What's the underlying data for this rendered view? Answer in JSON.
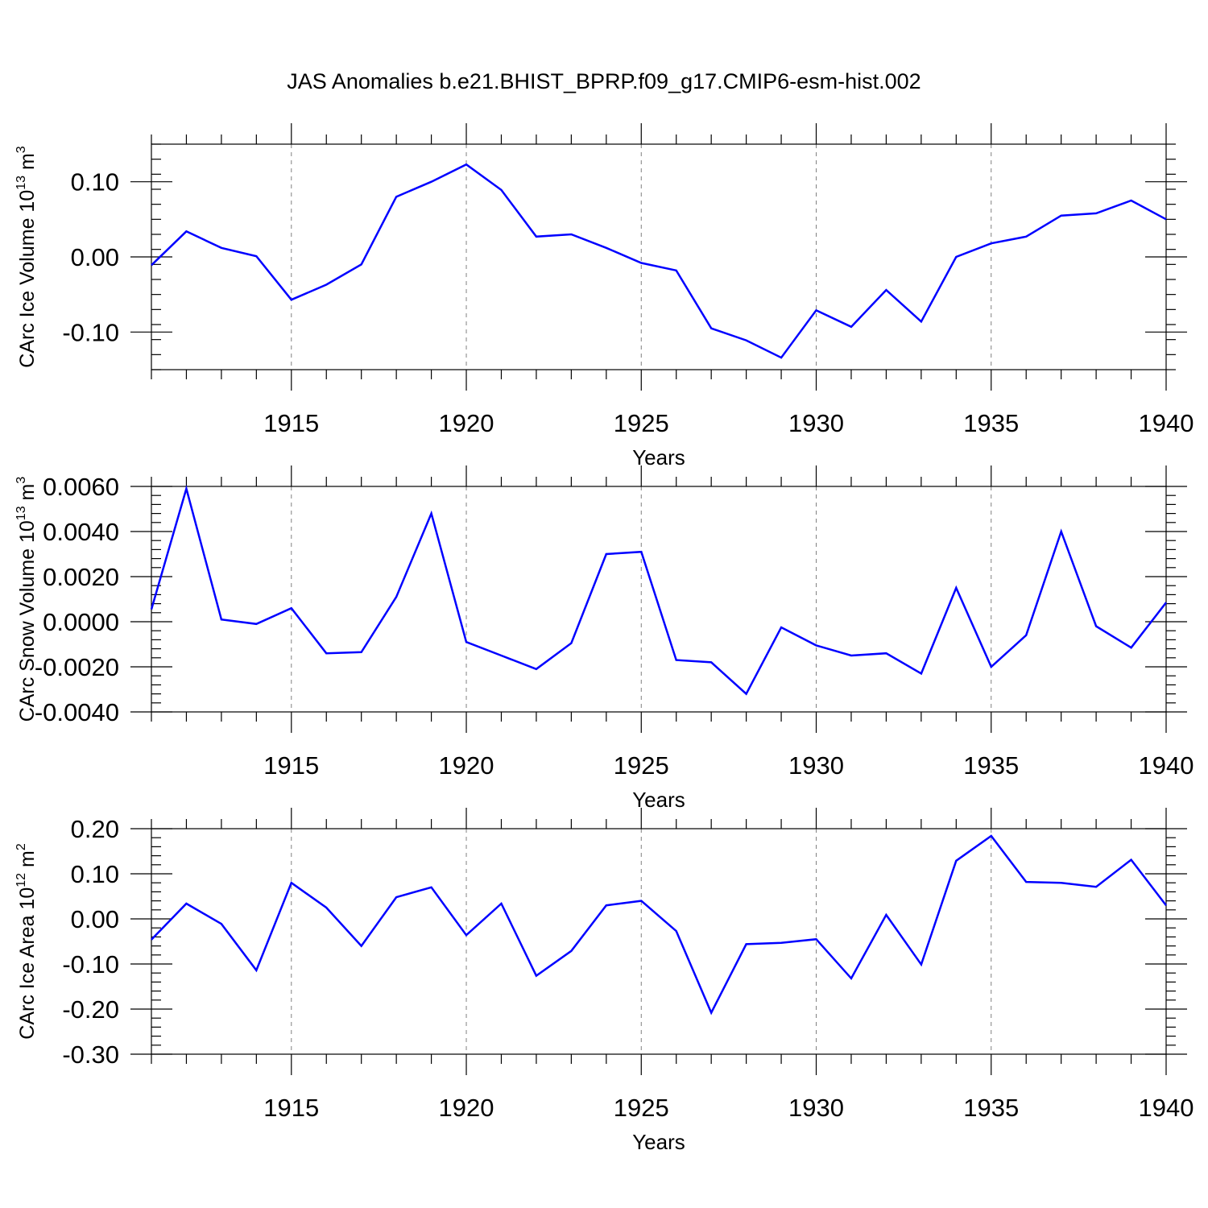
{
  "title": "JAS Anomalies b.e21.BHIST_BPRP.f09_g17.CMIP6-esm-hist.002",
  "colors": {
    "series": "#0000ff",
    "axes": "#000000",
    "grid": "#808080"
  },
  "chart_data": [
    {
      "type": "line",
      "ylabel_parts": [
        "CArc Ice Volume 10",
        "13",
        " m",
        "3"
      ],
      "xlabel": "Years",
      "x": [
        1911,
        1912,
        1913,
        1914,
        1915,
        1916,
        1917,
        1918,
        1919,
        1920,
        1921,
        1922,
        1923,
        1924,
        1925,
        1926,
        1927,
        1928,
        1929,
        1930,
        1931,
        1932,
        1933,
        1934,
        1935,
        1936,
        1937,
        1938,
        1939,
        1940
      ],
      "values": [
        -0.011,
        0.034,
        0.012,
        0.001,
        -0.057,
        -0.037,
        -0.01,
        0.08,
        0.1,
        0.123,
        0.089,
        0.027,
        0.03,
        0.012,
        -0.008,
        -0.018,
        -0.095,
        -0.111,
        -0.134,
        -0.071,
        -0.093,
        -0.044,
        -0.086,
        0.0,
        0.018,
        0.027,
        0.055,
        0.058,
        0.075,
        0.05
      ],
      "xlim": [
        1911,
        1940
      ],
      "ylim": [
        -0.15,
        0.15
      ],
      "yticks": [
        -0.1,
        0.0,
        0.1
      ],
      "ytick_labels": [
        "-0.10",
        "0.00",
        "0.10"
      ],
      "xticks": [
        1915,
        1920,
        1925,
        1930,
        1935,
        1940
      ],
      "xtick_labels": [
        "1915",
        "1920",
        "1925",
        "1930",
        "1935",
        "1940"
      ]
    },
    {
      "type": "line",
      "ylabel_parts": [
        "CArc Snow Volume 10",
        "13",
        " m",
        "3"
      ],
      "xlabel": "Years",
      "x": [
        1911,
        1912,
        1913,
        1914,
        1915,
        1916,
        1917,
        1918,
        1919,
        1920,
        1921,
        1922,
        1923,
        1924,
        1925,
        1926,
        1927,
        1928,
        1929,
        1930,
        1931,
        1932,
        1933,
        1934,
        1935,
        1936,
        1937,
        1938,
        1939,
        1940
      ],
      "values": [
        0.00055,
        0.0059,
        0.0001,
        -0.0001,
        0.0006,
        -0.0014,
        -0.00135,
        0.0011,
        0.0048,
        -0.0009,
        -0.0015,
        -0.0021,
        -0.00095,
        0.003,
        0.0031,
        -0.0017,
        -0.0018,
        -0.0032,
        -0.00025,
        -0.00105,
        -0.0015,
        -0.0014,
        -0.0023,
        0.0015,
        -0.002,
        -0.0006,
        0.004,
        -0.0002,
        -0.00115,
        0.00085
      ],
      "xlim": [
        1911,
        1940
      ],
      "ylim": [
        -0.004,
        0.006
      ],
      "yticks": [
        -0.004,
        -0.002,
        0.0,
        0.002,
        0.004,
        0.006
      ],
      "ytick_labels": [
        "-0.0040",
        "-0.0020",
        "0.0000",
        "0.0020",
        "0.0040",
        "0.0060"
      ],
      "xticks": [
        1915,
        1920,
        1925,
        1930,
        1935,
        1940
      ],
      "xtick_labels": [
        "1915",
        "1920",
        "1925",
        "1930",
        "1935",
        "1940"
      ]
    },
    {
      "type": "line",
      "ylabel_parts": [
        "CArc Ice Area 10",
        "12",
        " m",
        "2"
      ],
      "xlabel": "Years",
      "x": [
        1911,
        1912,
        1913,
        1914,
        1915,
        1916,
        1917,
        1918,
        1919,
        1920,
        1921,
        1922,
        1923,
        1924,
        1925,
        1926,
        1927,
        1928,
        1929,
        1930,
        1931,
        1932,
        1933,
        1934,
        1935,
        1936,
        1937,
        1938,
        1939,
        1940
      ],
      "values": [
        -0.046,
        0.034,
        -0.011,
        -0.114,
        0.08,
        0.025,
        -0.06,
        0.048,
        0.07,
        -0.036,
        0.034,
        -0.126,
        -0.071,
        0.03,
        0.04,
        -0.027,
        -0.208,
        -0.056,
        -0.053,
        -0.045,
        -0.132,
        0.009,
        -0.101,
        0.129,
        0.184,
        0.082,
        0.08,
        0.071,
        0.131,
        0.03
      ],
      "xlim": [
        1911,
        1940
      ],
      "ylim": [
        -0.3,
        0.2
      ],
      "yticks": [
        -0.3,
        -0.2,
        -0.1,
        0.0,
        0.1,
        0.2
      ],
      "ytick_labels": [
        "-0.30",
        "-0.20",
        "-0.10",
        "0.00",
        "0.10",
        "0.20"
      ],
      "xticks": [
        1915,
        1920,
        1925,
        1930,
        1935,
        1940
      ],
      "xtick_labels": [
        "1915",
        "1920",
        "1925",
        "1930",
        "1935",
        "1940"
      ]
    }
  ]
}
